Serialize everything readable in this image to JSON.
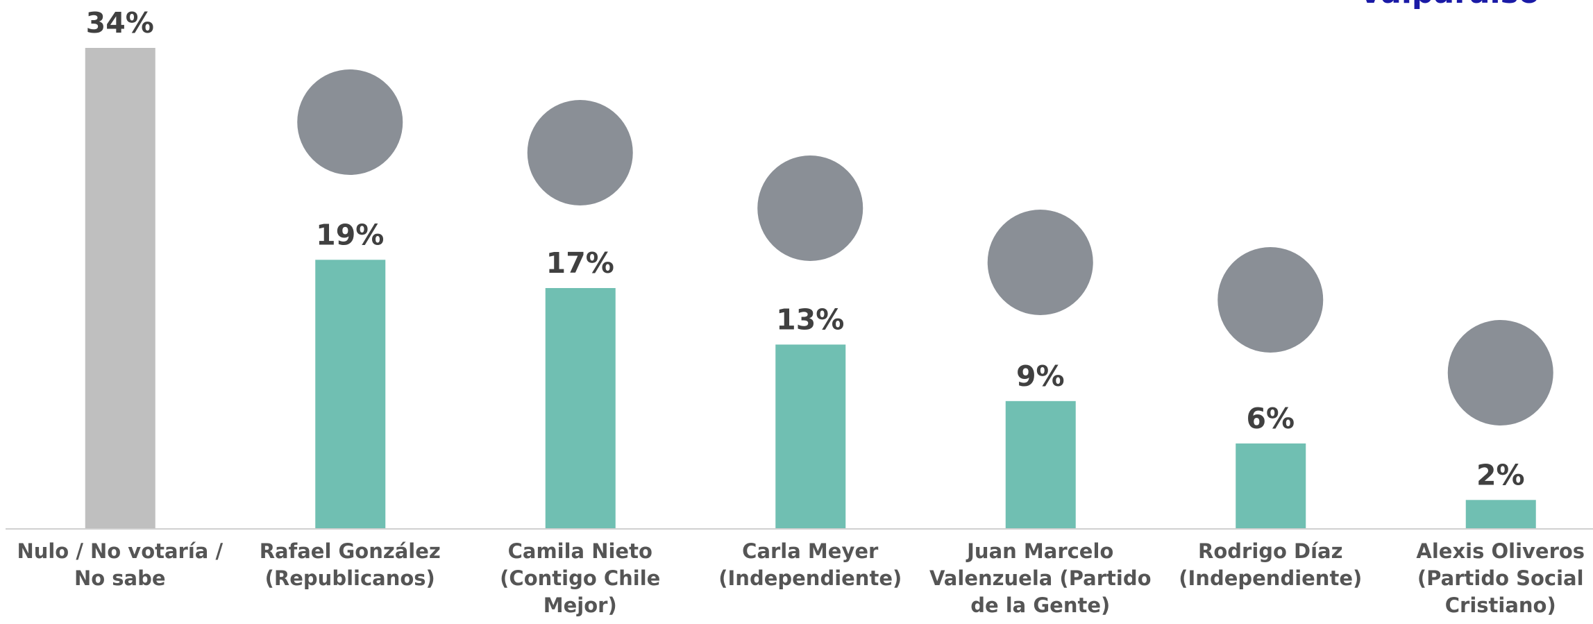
{
  "chart_data": {
    "type": "bar",
    "title": "Valparaíso",
    "categories": [
      "Nulo / No votaría / No sabe",
      "Rafael González (Republicanos)",
      "Camila Nieto (Contigo Chile Mejor)",
      "Carla Meyer (Independiente)",
      "Juan Marcelo Valenzuela (Partido de la Gente)",
      "Rodrigo Díaz (Independiente)",
      "Alexis Oliveros (Partido Social Cristiano)"
    ],
    "values": [
      34,
      19,
      17,
      13,
      9,
      6,
      2
    ],
    "value_labels": [
      "34%",
      "19%",
      "17%",
      "13%",
      "9%",
      "6%",
      "2%"
    ],
    "colors": [
      "#bfbfbf",
      "#70bfb2",
      "#70bfb2",
      "#70bfb2",
      "#70bfb2",
      "#70bfb2",
      "#70bfb2"
    ],
    "ylim": [
      0,
      34
    ]
  }
}
